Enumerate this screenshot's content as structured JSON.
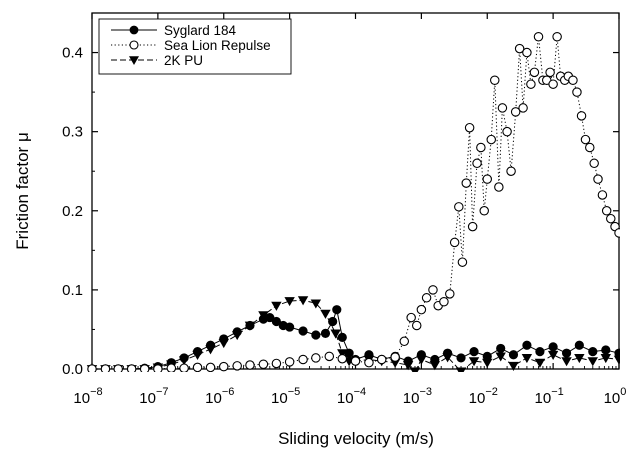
{
  "chart_data": {
    "type": "scatter",
    "xscale": "log",
    "xlabel": "Sliding velocity (m/s)",
    "ylabel": "Friction factor μ",
    "xlim": [
      1e-08,
      1
    ],
    "ylim": [
      0,
      0.45
    ],
    "xticks": [
      {
        "mantissa": "10",
        "exp": "−8",
        "value": 1e-08
      },
      {
        "mantissa": "10",
        "exp": "−7",
        "value": 1e-07
      },
      {
        "mantissa": "10",
        "exp": "−6",
        "value": 1e-06
      },
      {
        "mantissa": "10",
        "exp": "−5",
        "value": 1e-05
      },
      {
        "mantissa": "10",
        "exp": "−4",
        "value": 0.0001
      },
      {
        "mantissa": "10",
        "exp": "−3",
        "value": 0.001
      },
      {
        "mantissa": "10",
        "exp": "−2",
        "value": 0.01
      },
      {
        "mantissa": "10",
        "exp": "−1",
        "value": 0.1
      },
      {
        "mantissa": "10",
        "exp": "0",
        "value": 1
      }
    ],
    "yticks": [
      {
        "label": "0.0",
        "value": 0.0
      },
      {
        "label": "0.1",
        "value": 0.1
      },
      {
        "label": "0.2",
        "value": 0.2
      },
      {
        "label": "0.3",
        "value": 0.3
      },
      {
        "label": "0.4",
        "value": 0.4
      }
    ],
    "legend_position": "top-left",
    "series": [
      {
        "name": "Syglard 184",
        "marker": "filled-circle",
        "line": "solid",
        "color": "#000000",
        "points": [
          [
            1e-08,
            0.0
          ],
          [
            1.6e-08,
            0.0
          ],
          [
            2.5e-08,
            0.0
          ],
          [
            4e-08,
            0.0
          ],
          [
            6.3e-08,
            0.001
          ],
          [
            1e-07,
            0.003
          ],
          [
            1.6e-07,
            0.008
          ],
          [
            2.5e-07,
            0.014
          ],
          [
            4e-07,
            0.022
          ],
          [
            6.3e-07,
            0.03
          ],
          [
            1e-06,
            0.038
          ],
          [
            1.6e-06,
            0.047
          ],
          [
            2.5e-06,
            0.055
          ],
          [
            4e-06,
            0.063
          ],
          [
            5e-06,
            0.065
          ],
          [
            6.3e-06,
            0.06
          ],
          [
            8e-06,
            0.055
          ],
          [
            1e-05,
            0.053
          ],
          [
            1.6e-05,
            0.048
          ],
          [
            2.5e-05,
            0.043
          ],
          [
            3.5e-05,
            0.045
          ],
          [
            4.5e-05,
            0.06
          ],
          [
            5.2e-05,
            0.075
          ],
          [
            6.3e-05,
            0.04
          ],
          [
            8e-05,
            0.02
          ],
          [
            0.0001,
            0.012
          ],
          [
            0.00016,
            0.018
          ],
          [
            0.00025,
            0.012
          ],
          [
            0.0004,
            0.016
          ],
          [
            0.00063,
            0.01
          ],
          [
            0.001,
            0.018
          ],
          [
            0.0016,
            0.012
          ],
          [
            0.0025,
            0.02
          ],
          [
            0.004,
            0.014
          ],
          [
            0.0063,
            0.022
          ],
          [
            0.01,
            0.016
          ],
          [
            0.016,
            0.026
          ],
          [
            0.025,
            0.018
          ],
          [
            0.04,
            0.03
          ],
          [
            0.063,
            0.022
          ],
          [
            0.1,
            0.028
          ],
          [
            0.16,
            0.02
          ],
          [
            0.25,
            0.03
          ],
          [
            0.4,
            0.022
          ],
          [
            0.63,
            0.024
          ],
          [
            1,
            0.02
          ]
        ]
      },
      {
        "name": "Sea Lion Repulse",
        "marker": "open-circle",
        "line": "dotted",
        "color": "#000000",
        "points": [
          [
            1e-08,
            0.0
          ],
          [
            1.6e-08,
            0.0
          ],
          [
            2.5e-08,
            0.0
          ],
          [
            4e-08,
            0.0
          ],
          [
            6.3e-08,
            0.0
          ],
          [
            1e-07,
            0.0
          ],
          [
            1.6e-07,
            0.001
          ],
          [
            2.5e-07,
            0.001
          ],
          [
            4e-07,
            0.002
          ],
          [
            6.3e-07,
            0.002
          ],
          [
            1e-06,
            0.003
          ],
          [
            1.6e-06,
            0.004
          ],
          [
            2.5e-06,
            0.005
          ],
          [
            4e-06,
            0.006
          ],
          [
            6.3e-06,
            0.007
          ],
          [
            1e-05,
            0.009
          ],
          [
            1.6e-05,
            0.012
          ],
          [
            2.5e-05,
            0.014
          ],
          [
            4e-05,
            0.016
          ],
          [
            6.3e-05,
            0.013
          ],
          [
            0.0001,
            0.01
          ],
          [
            0.00016,
            0.008
          ],
          [
            0.00025,
            0.012
          ],
          [
            0.0004,
            0.015
          ],
          [
            0.00055,
            0.035
          ],
          [
            0.0007,
            0.065
          ],
          [
            0.00085,
            0.055
          ],
          [
            0.001,
            0.075
          ],
          [
            0.0012,
            0.09
          ],
          [
            0.0015,
            0.1
          ],
          [
            0.0018,
            0.08
          ],
          [
            0.0022,
            0.085
          ],
          [
            0.0027,
            0.095
          ],
          [
            0.0032,
            0.16
          ],
          [
            0.0037,
            0.205
          ],
          [
            0.0042,
            0.135
          ],
          [
            0.0048,
            0.235
          ],
          [
            0.0054,
            0.305
          ],
          [
            0.006,
            0.18
          ],
          [
            0.007,
            0.26
          ],
          [
            0.008,
            0.28
          ],
          [
            0.009,
            0.2
          ],
          [
            0.01,
            0.24
          ],
          [
            0.0115,
            0.29
          ],
          [
            0.013,
            0.365
          ],
          [
            0.015,
            0.23
          ],
          [
            0.017,
            0.33
          ],
          [
            0.02,
            0.3
          ],
          [
            0.023,
            0.25
          ],
          [
            0.027,
            0.325
          ],
          [
            0.031,
            0.405
          ],
          [
            0.035,
            0.33
          ],
          [
            0.04,
            0.4
          ],
          [
            0.046,
            0.36
          ],
          [
            0.052,
            0.375
          ],
          [
            0.06,
            0.42
          ],
          [
            0.07,
            0.365
          ],
          [
            0.08,
            0.365
          ],
          [
            0.09,
            0.375
          ],
          [
            0.1,
            0.36
          ],
          [
            0.115,
            0.42
          ],
          [
            0.13,
            0.37
          ],
          [
            0.15,
            0.365
          ],
          [
            0.17,
            0.37
          ],
          [
            0.2,
            0.365
          ],
          [
            0.23,
            0.35
          ],
          [
            0.27,
            0.32
          ],
          [
            0.31,
            0.29
          ],
          [
            0.36,
            0.28
          ],
          [
            0.42,
            0.26
          ],
          [
            0.48,
            0.24
          ],
          [
            0.56,
            0.22
          ],
          [
            0.65,
            0.2
          ],
          [
            0.75,
            0.19
          ],
          [
            0.87,
            0.18
          ],
          [
            1,
            0.172
          ]
        ]
      },
      {
        "name": "2K PU",
        "marker": "filled-triangle-down",
        "line": "dashed",
        "color": "#000000",
        "points": [
          [
            1e-08,
            0.0
          ],
          [
            1.6e-08,
            0.0
          ],
          [
            2.5e-08,
            0.0
          ],
          [
            4e-08,
            0.0
          ],
          [
            6.3e-08,
            0.0
          ],
          [
            1e-07,
            0.002
          ],
          [
            1.6e-07,
            0.006
          ],
          [
            2.5e-07,
            0.011
          ],
          [
            4e-07,
            0.018
          ],
          [
            6.3e-07,
            0.025
          ],
          [
            1e-06,
            0.033
          ],
          [
            1.6e-06,
            0.043
          ],
          [
            2.5e-06,
            0.055
          ],
          [
            4e-06,
            0.068
          ],
          [
            6.3e-06,
            0.08
          ],
          [
            1e-05,
            0.086
          ],
          [
            1.6e-05,
            0.087
          ],
          [
            2.5e-05,
            0.083
          ],
          [
            3.5e-05,
            0.07
          ],
          [
            5e-05,
            0.045
          ],
          [
            6.3e-05,
            0.02
          ],
          [
            8e-05,
            0.01
          ],
          [
            0.0001,
            0.01
          ],
          [
            0.00016,
            0.012
          ],
          [
            0.00025,
            0.01
          ],
          [
            0.0004,
            0.008
          ],
          [
            0.00063,
            0.005
          ],
          [
            0.0008,
            -0.003
          ],
          [
            0.001,
            0.012
          ],
          [
            0.0016,
            0.005
          ],
          [
            0.0025,
            0.015
          ],
          [
            0.004,
            -0.003
          ],
          [
            0.0063,
            0.01
          ],
          [
            0.01,
            0.008
          ],
          [
            0.016,
            0.016
          ],
          [
            0.025,
            0.004
          ],
          [
            0.04,
            0.014
          ],
          [
            0.063,
            0.008
          ],
          [
            0.1,
            0.018
          ],
          [
            0.16,
            0.01
          ],
          [
            0.25,
            0.014
          ],
          [
            0.4,
            0.01
          ],
          [
            0.63,
            0.014
          ],
          [
            1,
            0.012
          ]
        ]
      }
    ]
  }
}
